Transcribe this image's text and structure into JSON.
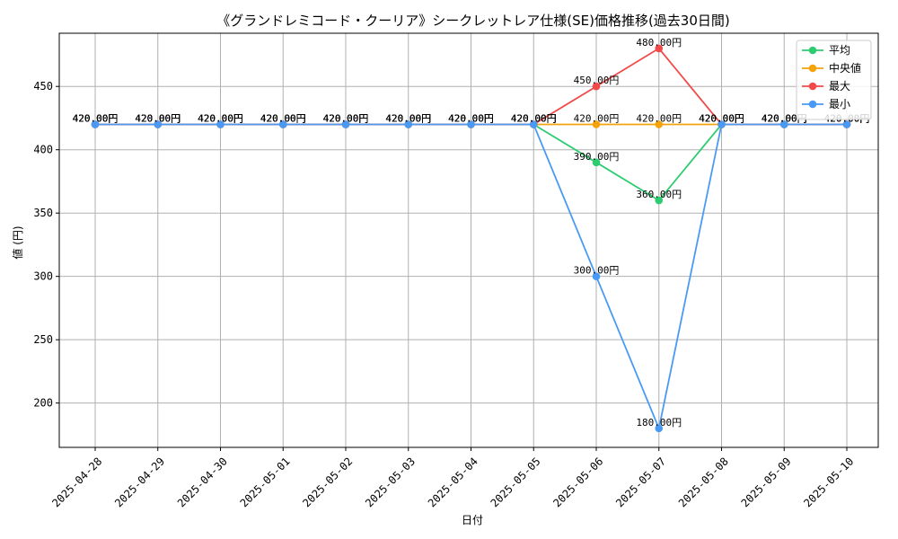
{
  "chart_data": {
    "type": "line",
    "title": "《グランドレミコード・クーリア》シークレットレア仕様(SE)価格推移(過去30日間)",
    "xlabel": "日付",
    "ylabel": "値 (円)",
    "categories": [
      "2025-04-28",
      "2025-04-29",
      "2025-04-30",
      "2025-05-01",
      "2025-05-02",
      "2025-05-03",
      "2025-05-04",
      "2025-05-05",
      "2025-05-06",
      "2025-05-07",
      "2025-05-08",
      "2025-05-09",
      "2025-05-10"
    ],
    "ylim": [
      165,
      492
    ],
    "yticks": [
      200,
      250,
      300,
      350,
      400,
      450
    ],
    "grid": true,
    "legend_position": "top-right",
    "series": [
      {
        "name": "平均",
        "color": "#2ecc71",
        "values": [
          420,
          420,
          420,
          420,
          420,
          420,
          420,
          420,
          390,
          360,
          420,
          420,
          420
        ]
      },
      {
        "name": "中央値",
        "color": "#f5a30a",
        "values": [
          420,
          420,
          420,
          420,
          420,
          420,
          420,
          420,
          420,
          420,
          420,
          420,
          420
        ]
      },
      {
        "name": "最大",
        "color": "#f04a4a",
        "values": [
          420,
          420,
          420,
          420,
          420,
          420,
          420,
          420,
          450,
          480,
          420,
          420,
          420
        ]
      },
      {
        "name": "最小",
        "color": "#4a9af5",
        "values": [
          420,
          420,
          420,
          420,
          420,
          420,
          420,
          420,
          300,
          180,
          420,
          420,
          420
        ]
      }
    ],
    "value_suffix": "円"
  }
}
